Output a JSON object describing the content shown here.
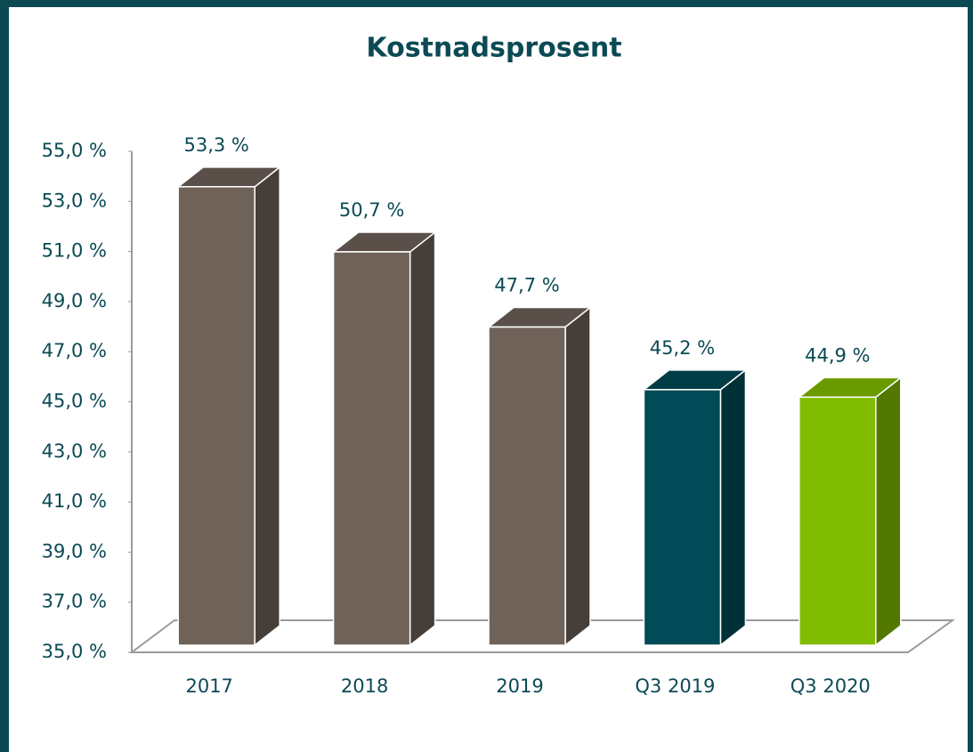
{
  "chart_data": {
    "type": "bar3d",
    "title": "Kostnadsprosent",
    "categories": [
      "2017",
      "2018",
      "2019",
      "Q3 2019",
      "Q3 2020"
    ],
    "values": [
      53.3,
      50.7,
      47.7,
      45.2,
      44.9
    ],
    "value_labels": [
      "53,3 %",
      "50,7 %",
      "47,7 %",
      "45,2 %",
      "44,9 %"
    ],
    "colors": [
      "#6e6259",
      "#6e6259",
      "#6e6259",
      "#004b57",
      "#80bc00"
    ],
    "ylim": [
      35,
      55
    ],
    "yticks": [
      {
        "value": 35,
        "label": "35,0 %"
      },
      {
        "value": 37,
        "label": "37,0 %"
      },
      {
        "value": 39,
        "label": "39,0 %"
      },
      {
        "value": 41,
        "label": "41,0 %"
      },
      {
        "value": 43,
        "label": "43,0 %"
      },
      {
        "value": 45,
        "label": "45,0 %"
      },
      {
        "value": 47,
        "label": "47,0 %"
      },
      {
        "value": 49,
        "label": "49,0 %"
      },
      {
        "value": 51,
        "label": "51,0 %"
      },
      {
        "value": 53,
        "label": "53,0 %"
      },
      {
        "value": 55,
        "label": "55,0 %"
      }
    ]
  }
}
